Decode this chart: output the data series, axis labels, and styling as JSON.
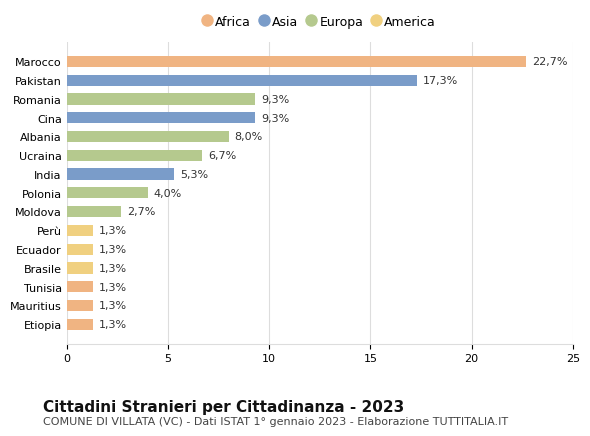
{
  "countries": [
    "Marocco",
    "Pakistan",
    "Romania",
    "Cina",
    "Albania",
    "Ucraina",
    "India",
    "Polonia",
    "Moldova",
    "Perù",
    "Ecuador",
    "Brasile",
    "Tunisia",
    "Mauritius",
    "Etiopia"
  ],
  "values": [
    22.7,
    17.3,
    9.3,
    9.3,
    8.0,
    6.7,
    5.3,
    4.0,
    2.7,
    1.3,
    1.3,
    1.3,
    1.3,
    1.3,
    1.3
  ],
  "labels": [
    "22,7%",
    "17,3%",
    "9,3%",
    "9,3%",
    "8,0%",
    "6,7%",
    "5,3%",
    "4,0%",
    "2,7%",
    "1,3%",
    "1,3%",
    "1,3%",
    "1,3%",
    "1,3%",
    "1,3%"
  ],
  "continents": [
    "Africa",
    "Asia",
    "Europa",
    "Asia",
    "Europa",
    "Europa",
    "Asia",
    "Europa",
    "Europa",
    "America",
    "America",
    "America",
    "Africa",
    "Africa",
    "Africa"
  ],
  "continent_colors": {
    "Africa": "#f0b482",
    "Asia": "#7a9cc9",
    "Europa": "#b5c98e",
    "America": "#f0d080"
  },
  "legend_order": [
    "Africa",
    "Asia",
    "Europa",
    "America"
  ],
  "legend_colors": [
    "#f0b482",
    "#7a9cc9",
    "#b5c98e",
    "#f0d080"
  ],
  "xlim": [
    0,
    25
  ],
  "xticks": [
    0,
    5,
    10,
    15,
    20,
    25
  ],
  "title": "Cittadini Stranieri per Cittadinanza - 2023",
  "subtitle": "COMUNE DI VILLATA (VC) - Dati ISTAT 1° gennaio 2023 - Elaborazione TUTTITALIA.IT",
  "background_color": "#ffffff",
  "grid_color": "#dddddd",
  "bar_height": 0.6,
  "label_fontsize": 8,
  "tick_fontsize": 8,
  "title_fontsize": 11,
  "subtitle_fontsize": 8
}
